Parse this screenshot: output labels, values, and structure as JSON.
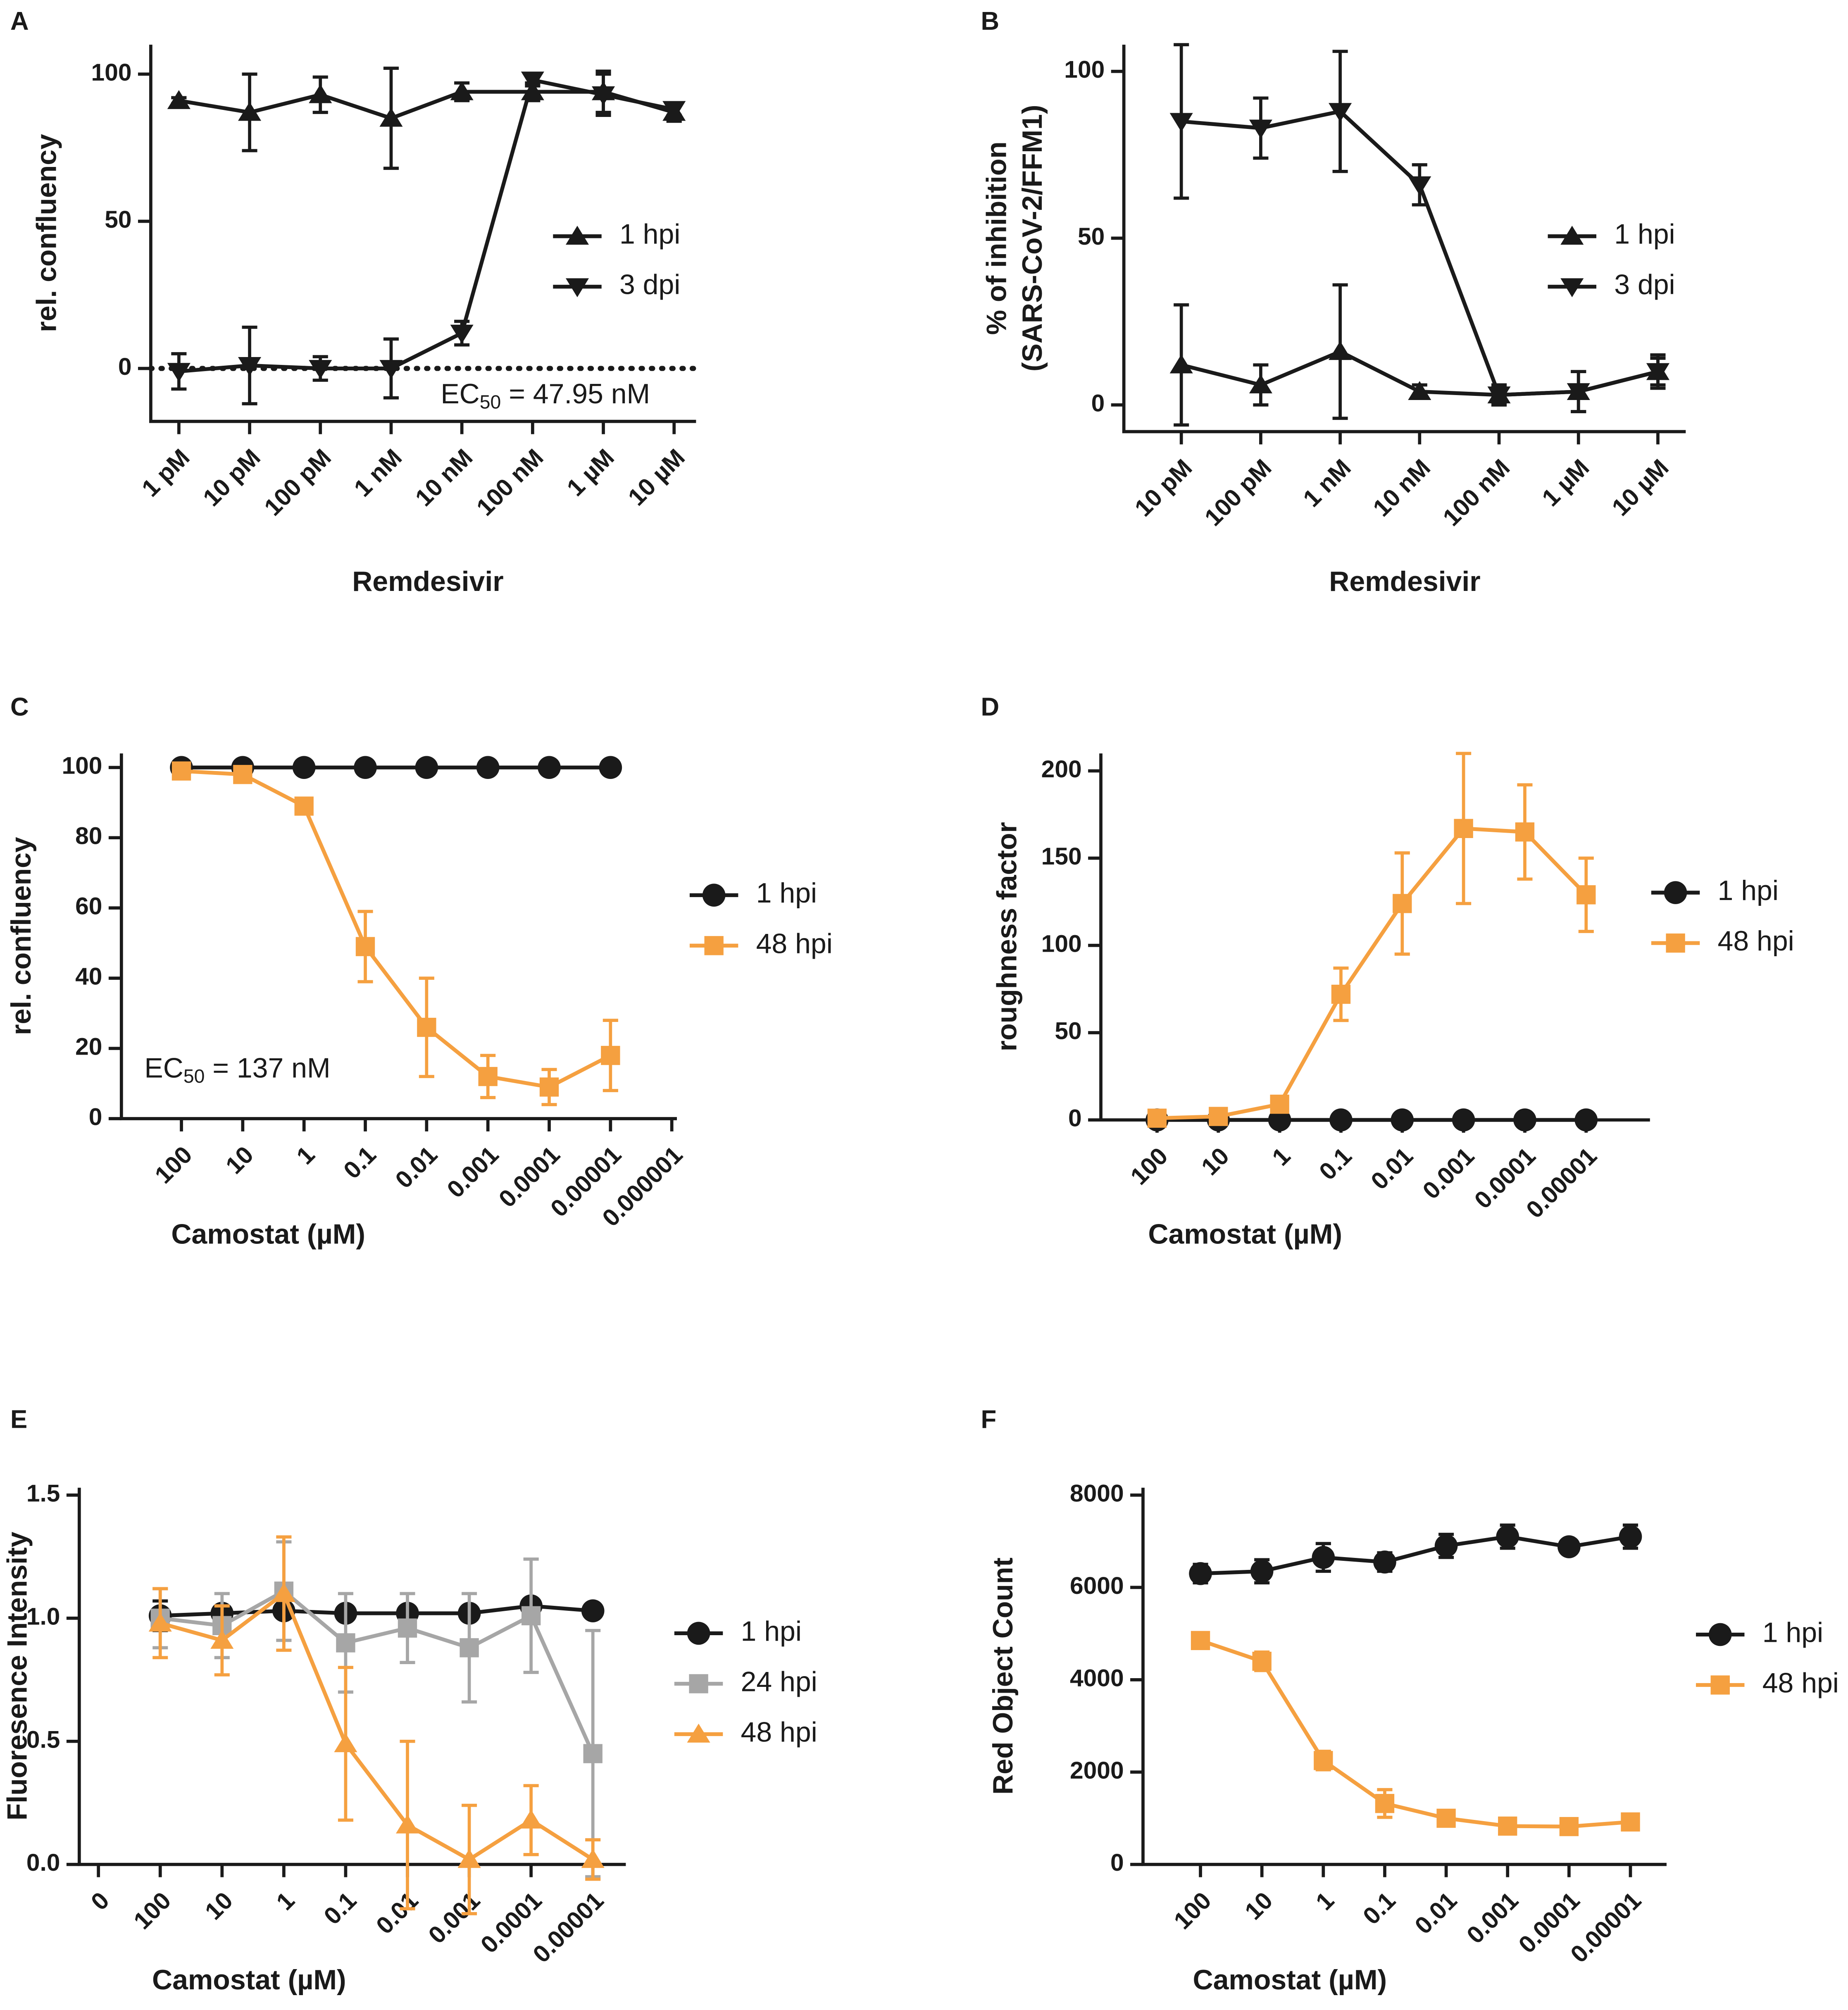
{
  "chart_data": [
    {
      "type": "line",
      "panel": "A",
      "xlabel": "Remdesivir",
      "ylabel": [
        "rel. confluency"
      ],
      "categories": [
        "1 pM",
        "10 pM",
        "100 pM",
        "1 nM",
        "10 nM",
        "100 nM",
        "1 µM",
        "10 µM"
      ],
      "series": [
        {
          "name": "1 hpi",
          "color": "#1a1a1a",
          "marker": "triangle-up",
          "values": [
            91,
            87,
            93,
            85,
            94,
            94,
            94,
            87
          ],
          "errors": [
            1,
            13,
            6,
            17,
            3,
            3,
            7,
            3
          ]
        },
        {
          "name": "3 dpi",
          "color": "#1a1a1a",
          "marker": "triangle-down",
          "values": [
            -1,
            1,
            0,
            0,
            12,
            98,
            93,
            88
          ],
          "errors": [
            6,
            13,
            4,
            10,
            4,
            2,
            7,
            2
          ]
        }
      ],
      "ylim": [
        -18,
        110
      ],
      "yticks": [
        0,
        50,
        100
      ],
      "hline": 0,
      "hline_style": "dotted",
      "annotation": {
        "text": "EC",
        "sub": "50",
        "rest": " = 47.95 nM"
      },
      "legend": "right"
    },
    {
      "type": "line",
      "panel": "B",
      "xlabel": "Remdesivir",
      "ylabel": [
        "% of inhibition",
        "(SARS-CoV-2/FFM1)"
      ],
      "categories": [
        "10 pM",
        "100 pM",
        "1 nM",
        "10 nM",
        "100 nM",
        "1 µM",
        "10 µM"
      ],
      "series": [
        {
          "name": "1 hpi",
          "color": "#1a1a1a",
          "marker": "triangle-up",
          "values": [
            12,
            6,
            16,
            4,
            3,
            4,
            10
          ],
          "errors": [
            18,
            6,
            20,
            2,
            3,
            6,
            5
          ]
        },
        {
          "name": "3 dpi",
          "color": "#1a1a1a",
          "marker": "triangle-down",
          "values": [
            85,
            83,
            88,
            66,
            3,
            4,
            10
          ],
          "errors": [
            23,
            9,
            18,
            6,
            3,
            6,
            4
          ]
        }
      ],
      "ylim": [
        -8,
        108
      ],
      "yticks": [
        0,
        50,
        100
      ],
      "legend": "right"
    },
    {
      "type": "line",
      "panel": "C",
      "xlabel": "Camostat (µM)",
      "ylabel": [
        "rel. confluency"
      ],
      "categories": [
        "100",
        "10",
        "1",
        "0.1",
        "0.01",
        "0.001",
        "0.0001",
        "0.00001",
        "0.000001"
      ],
      "series": [
        {
          "name": "1 hpi",
          "color": "#1a1a1a",
          "marker": "circle",
          "values": [
            100,
            100,
            100,
            100,
            100,
            100,
            100,
            100,
            null
          ],
          "errors": [
            0,
            0,
            0,
            0,
            0,
            0,
            0,
            0,
            null
          ]
        },
        {
          "name": "48 hpi",
          "color": "#f5a040",
          "marker": "square",
          "values": [
            99,
            98,
            89,
            49,
            26,
            12,
            9,
            18,
            null
          ],
          "errors": [
            1,
            1,
            1,
            10,
            14,
            6,
            5,
            10,
            null
          ]
        }
      ],
      "ylim": [
        0,
        104
      ],
      "yticks": [
        0,
        20,
        40,
        60,
        80,
        100
      ],
      "annotation": {
        "text": "EC",
        "sub": "50",
        "rest": " = 137 nM"
      },
      "legend": "right"
    },
    {
      "type": "line",
      "panel": "D",
      "xlabel": "Camostat (µM)",
      "ylabel": [
        "roughness factor"
      ],
      "categories": [
        "100",
        "10",
        "1",
        "0.1",
        "0.01",
        "0.001",
        "0.0001",
        "0.00001"
      ],
      "series": [
        {
          "name": "1 hpi",
          "color": "#1a1a1a",
          "marker": "circle",
          "values": [
            0,
            0,
            0,
            0,
            0,
            0,
            0,
            0
          ],
          "errors": [
            0,
            0,
            0,
            0,
            0,
            0,
            0,
            0
          ]
        },
        {
          "name": "48 hpi",
          "color": "#f5a040",
          "marker": "square",
          "values": [
            1,
            2,
            9,
            72,
            124,
            167,
            165,
            129
          ],
          "errors": [
            0,
            0,
            0,
            15,
            29,
            43,
            27,
            21
          ]
        }
      ],
      "ylim": [
        0,
        210
      ],
      "yticks": [
        0,
        50,
        100,
        150,
        200
      ],
      "legend": "right"
    },
    {
      "type": "line",
      "panel": "E",
      "xlabel": "Camostat (µM)",
      "ylabel": [
        "Fluoresence Intensity"
      ],
      "categories": [
        "0",
        "100",
        "10",
        "1",
        "0.1",
        "0.01",
        "0.001",
        "0.0001",
        "0.00001"
      ],
      "series": [
        {
          "name": "1 hpi",
          "color": "#1a1a1a",
          "marker": "circle",
          "values": [
            null,
            1.01,
            1.02,
            1.03,
            1.02,
            1.02,
            1.02,
            1.05,
            1.03
          ],
          "errors": [
            null,
            0.06,
            0.02,
            0.02,
            0.02,
            0.02,
            0.02,
            0.02,
            0.02
          ]
        },
        {
          "name": "24 hpi",
          "color": "#a6a6a6",
          "marker": "square",
          "values": [
            null,
            1.0,
            0.97,
            1.11,
            0.9,
            0.96,
            0.88,
            1.01,
            0.45
          ],
          "errors": [
            null,
            0.12,
            0.13,
            0.2,
            0.2,
            0.14,
            0.22,
            0.23,
            0.5
          ]
        },
        {
          "name": "48 hpi",
          "color": "#f5a040",
          "marker": "triangle-up",
          "values": [
            null,
            0.98,
            0.91,
            1.1,
            0.49,
            0.16,
            0.02,
            0.18,
            0.02
          ],
          "errors": [
            null,
            0.14,
            0.14,
            0.23,
            0.31,
            0.34,
            0.22,
            0.14,
            0.08
          ]
        }
      ],
      "ylim": [
        0,
        1.53
      ],
      "yticks": [
        {
          "value": 0,
          "label": "0.0"
        },
        0.5,
        {
          "value": 1,
          "label": "1.0"
        },
        1.5
      ],
      "legend": "right"
    },
    {
      "type": "line",
      "panel": "F",
      "xlabel": "Camostat (µM)",
      "ylabel": [
        "Red Object Count"
      ],
      "categories": [
        "100",
        "10",
        "1",
        "0.1",
        "0.01",
        "0.001",
        "0.0001",
        "0.00001"
      ],
      "series": [
        {
          "name": "1 hpi",
          "color": "#1a1a1a",
          "marker": "circle",
          "values": [
            6300,
            6350,
            6650,
            6550,
            6900,
            7100,
            6880,
            7100
          ],
          "errors": [
            200,
            250,
            300,
            200,
            250,
            250,
            150,
            250
          ]
        },
        {
          "name": "48 hpi",
          "color": "#f5a040",
          "marker": "square",
          "values": [
            4850,
            4400,
            2250,
            1320,
            1000,
            830,
            820,
            920
          ],
          "errors": [
            100,
            200,
            200,
            300,
            100,
            80,
            80,
            100
          ]
        }
      ],
      "ylim": [
        0,
        8160
      ],
      "yticks": [
        0,
        2000,
        4000,
        6000,
        8000
      ],
      "legend": "right"
    }
  ]
}
